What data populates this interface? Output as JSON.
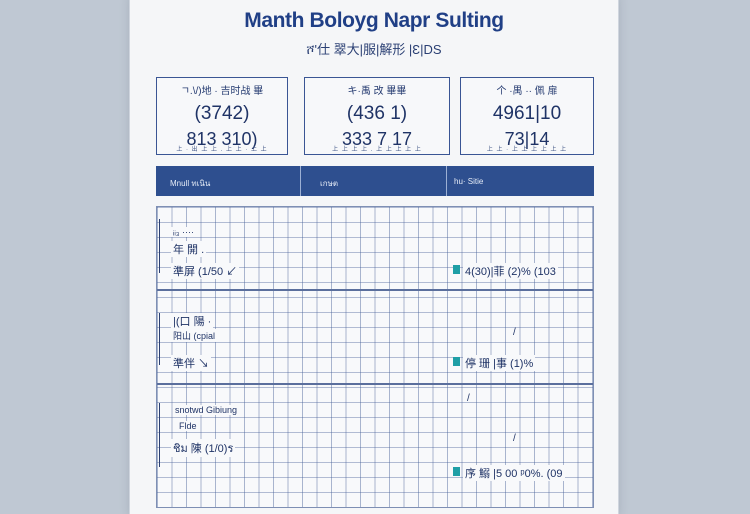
{
  "title": "Manth Boloyg Napr Sulting",
  "subtitle": "ሾ'仕 翠大|服|解形 |Ɛ|DS",
  "stats": [
    {
      "label": "ㄱ.\\/)地 · 吉时战 畢 ",
      "value1": "(3742)",
      "value2": "813 310)",
      "footer": "上 · 出 上 上 . 上 上 · 上 上"
    },
    {
      "label": "キ·禹 改 畢畢",
      "value1": "(436 1)",
      "value2": "333 7 17",
      "footer": "上 上 上 上 . 上 上 上 上 上"
    },
    {
      "label": "个 ·禺 ·· 佩 扉",
      "value1": "4961|10",
      "value2": "73|14",
      "footer": "上 上 · 上 上 上 上 上 上"
    }
  ],
  "header_band": {
    "col1": "Mnull ทเนิน",
    "col2": "เกษต",
    "col3": "hu· Sitie"
  },
  "sections": [
    {
      "sub1": "ᵢᵢ₃ ····",
      "sub2": "年 開 .",
      "row": "準屏 (1/50 ↙",
      "value": "4(30)|菲 (2)% (103"
    },
    {
      "sub1": "|(口 陽 ·",
      "sub2": "阳山 (cpial ",
      "row": "準伴 ↘",
      "value": "停 珊 |事 (1)%",
      "mark": "/"
    },
    {
      "sub1": "snotwd Gibiung",
      "sub2": "Flde ",
      "row": "ชิม 陳 (1/0)ร",
      "value": "序 鰯 |5 00 ᵖ0%. (09",
      "mark": "/",
      "mark2": "/"
    }
  ]
}
